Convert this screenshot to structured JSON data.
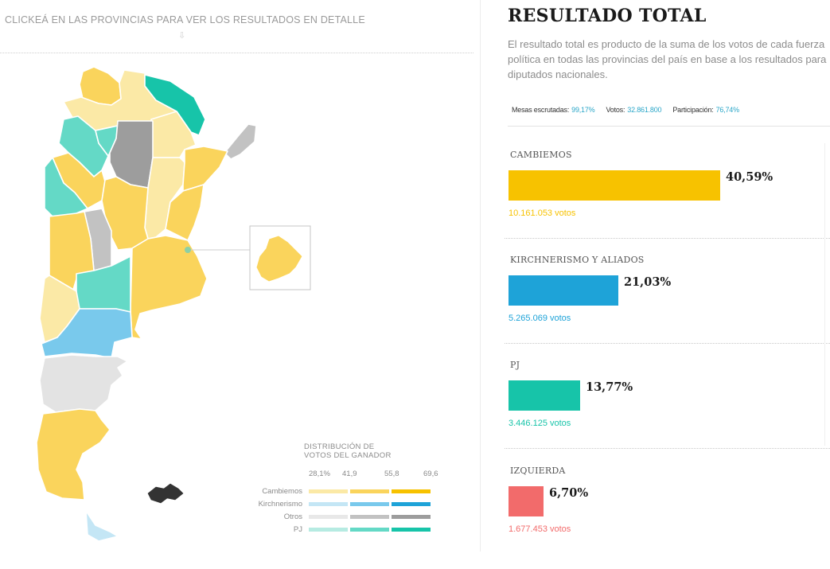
{
  "map_panel": {
    "hint": "CLICKEÁ EN LAS PROVINCIAS PARA VER LOS RESULTADOS EN DETALLE",
    "hint_arrow": "⇩",
    "legend": {
      "title_line1": "DISTRIBUCIÓN DE",
      "title_line2": "VOTOS DEL GANADOR",
      "ticks": [
        "28,1%",
        "41,9",
        "55,8",
        "69,6"
      ],
      "rows": [
        {
          "name": "Cambiemos",
          "colors": [
            "#fbe9a6",
            "#fad45c",
            "#f7c200"
          ]
        },
        {
          "name": "Kirchnerismo",
          "colors": [
            "#c4e6f5",
            "#79c9ec",
            "#1ea3d8"
          ]
        },
        {
          "name": "Otros",
          "colors": [
            "#e8e8e8",
            "#c2c2c2",
            "#9d9d9d"
          ]
        },
        {
          "name": "PJ",
          "colors": [
            "#b6ebe2",
            "#64d9c6",
            "#17c4a9"
          ]
        }
      ]
    },
    "region_colors": {
      "cambiemos_light": "#fbe9a6",
      "cambiemos_mid": "#fad45c",
      "kirchnerismo_light": "#c4e6f5",
      "kirchnerismo_mid": "#79c9ec",
      "otros_light": "#e3e3e3",
      "otros_mid": "#c2c2c2",
      "otros_dark": "#9d9d9d",
      "pj_mid": "#64d9c6",
      "pj_dark": "#17c4a9"
    }
  },
  "results": {
    "title": "RESULTADO TOTAL",
    "description": "El resultado total es producto de la suma de los votos de cada fuerza política en todas las provincias del país en base a los resultados para diputados nacionales.",
    "stats": {
      "mesas_label": "Mesas escrutadas:",
      "mesas_value": "99,17%",
      "votos_label": "Votos:",
      "votos_value": "32.861.800",
      "participacion_label": "Participación:",
      "participacion_value": "76,74%"
    },
    "parties": [
      {
        "name": "CAMBIEMOS",
        "percent": 40.59,
        "percent_label": "40,59%",
        "votes_label": "10.161.053 votos",
        "color": "#f7c200"
      },
      {
        "name": "KIRCHNERISMO Y ALIADOS",
        "percent": 21.03,
        "percent_label": "21,03%",
        "votes_label": "5.265.069 votos",
        "color": "#1ea3d8"
      },
      {
        "name": "PJ",
        "percent": 13.77,
        "percent_label": "13,77%",
        "votes_label": "3.446.125 votos",
        "color": "#17c4a9"
      },
      {
        "name": "IZQUIERDA",
        "percent": 6.7,
        "percent_label": "6,70%",
        "votes_label": "1.677.453 votos",
        "color": "#f26b6b"
      }
    ]
  }
}
